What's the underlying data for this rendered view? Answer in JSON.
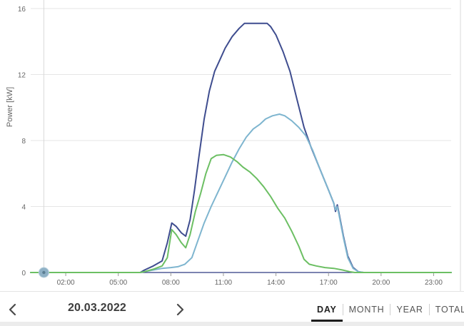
{
  "chart_data": {
    "type": "line",
    "title": "",
    "xlabel": "",
    "ylabel": "Power [kW]",
    "x_ticks": [
      "02:00",
      "05:00",
      "08:00",
      "11:00",
      "14:00",
      "17:00",
      "20:00",
      "23:00"
    ],
    "x_tick_hours": [
      2,
      5,
      8,
      11,
      14,
      17,
      20,
      23
    ],
    "xlim": [
      0,
      24
    ],
    "y_ticks": [
      0,
      4,
      8,
      12,
      16
    ],
    "ylim": [
      0,
      16
    ],
    "grid": "horizontal",
    "current_time_marker_hour": 0.75,
    "series": [
      {
        "color": "#3f4d8f",
        "points": [
          [
            0,
            0
          ],
          [
            6.25,
            0
          ],
          [
            6.5,
            0.15
          ],
          [
            7,
            0.4
          ],
          [
            7.5,
            0.7
          ],
          [
            7.8,
            1.8
          ],
          [
            8.05,
            3.0
          ],
          [
            8.3,
            2.8
          ],
          [
            8.6,
            2.4
          ],
          [
            8.85,
            2.2
          ],
          [
            9.1,
            3.2
          ],
          [
            9.35,
            5.0
          ],
          [
            9.6,
            7.0
          ],
          [
            9.9,
            9.3
          ],
          [
            10.2,
            11.0
          ],
          [
            10.5,
            12.2
          ],
          [
            10.8,
            12.9
          ],
          [
            11.1,
            13.6
          ],
          [
            11.5,
            14.3
          ],
          [
            11.9,
            14.8
          ],
          [
            12.2,
            15.1
          ],
          [
            13.5,
            15.1
          ],
          [
            13.7,
            14.9
          ],
          [
            14.0,
            14.4
          ],
          [
            14.4,
            13.4
          ],
          [
            14.8,
            12.2
          ],
          [
            15.2,
            10.5
          ],
          [
            15.6,
            8.8
          ],
          [
            16.0,
            7.6
          ],
          [
            16.5,
            6.3
          ],
          [
            17.0,
            5.0
          ],
          [
            17.3,
            4.2
          ],
          [
            17.4,
            3.7
          ],
          [
            17.5,
            4.1
          ],
          [
            17.6,
            3.6
          ],
          [
            17.85,
            2.2
          ],
          [
            18.1,
            1.0
          ],
          [
            18.4,
            0.3
          ],
          [
            18.7,
            0.05
          ],
          [
            19.0,
            0
          ],
          [
            24,
            0
          ]
        ]
      },
      {
        "color": "#7eb5cf",
        "points": [
          [
            0,
            0
          ],
          [
            6.25,
            0
          ],
          [
            6.5,
            0.05
          ],
          [
            7,
            0.15
          ],
          [
            7.5,
            0.25
          ],
          [
            8,
            0.3
          ],
          [
            8.4,
            0.35
          ],
          [
            8.8,
            0.5
          ],
          [
            9.2,
            0.9
          ],
          [
            9.5,
            1.8
          ],
          [
            9.9,
            3.0
          ],
          [
            10.3,
            4.0
          ],
          [
            10.7,
            4.9
          ],
          [
            11.1,
            5.8
          ],
          [
            11.5,
            6.7
          ],
          [
            11.9,
            7.5
          ],
          [
            12.3,
            8.2
          ],
          [
            12.7,
            8.7
          ],
          [
            13.1,
            9.0
          ],
          [
            13.4,
            9.3
          ],
          [
            13.8,
            9.5
          ],
          [
            14.2,
            9.6
          ],
          [
            14.5,
            9.5
          ],
          [
            14.9,
            9.2
          ],
          [
            15.3,
            8.8
          ],
          [
            15.7,
            8.3
          ],
          [
            16.1,
            7.4
          ],
          [
            16.5,
            6.3
          ],
          [
            17.0,
            5.0
          ],
          [
            17.3,
            4.2
          ],
          [
            17.4,
            3.8
          ],
          [
            17.5,
            4.0
          ],
          [
            17.6,
            3.5
          ],
          [
            17.85,
            2.1
          ],
          [
            18.1,
            0.9
          ],
          [
            18.4,
            0.25
          ],
          [
            18.7,
            0.05
          ],
          [
            19.0,
            0
          ],
          [
            24,
            0
          ]
        ]
      },
      {
        "color": "#6cbf63",
        "points": [
          [
            0,
            0
          ],
          [
            6.25,
            0
          ],
          [
            6.5,
            0.05
          ],
          [
            7,
            0.2
          ],
          [
            7.5,
            0.4
          ],
          [
            7.8,
            0.9
          ],
          [
            8.05,
            2.6
          ],
          [
            8.3,
            2.3
          ],
          [
            8.6,
            1.8
          ],
          [
            8.85,
            1.5
          ],
          [
            9.1,
            2.3
          ],
          [
            9.4,
            3.7
          ],
          [
            9.7,
            4.8
          ],
          [
            10.0,
            6.0
          ],
          [
            10.3,
            6.9
          ],
          [
            10.6,
            7.1
          ],
          [
            11.0,
            7.15
          ],
          [
            11.4,
            7.0
          ],
          [
            11.8,
            6.7
          ],
          [
            12.1,
            6.4
          ],
          [
            12.5,
            6.1
          ],
          [
            12.9,
            5.7
          ],
          [
            13.3,
            5.2
          ],
          [
            13.7,
            4.6
          ],
          [
            14.1,
            3.9
          ],
          [
            14.5,
            3.3
          ],
          [
            14.9,
            2.5
          ],
          [
            15.3,
            1.6
          ],
          [
            15.6,
            0.8
          ],
          [
            15.9,
            0.5
          ],
          [
            16.3,
            0.4
          ],
          [
            16.8,
            0.3
          ],
          [
            17.3,
            0.25
          ],
          [
            17.8,
            0.15
          ],
          [
            18.2,
            0.05
          ],
          [
            18.5,
            0
          ],
          [
            24,
            0
          ]
        ]
      }
    ]
  },
  "footer": {
    "date": "20.03.2022",
    "prev_icon": "chevron-left-icon",
    "next_icon": "chevron-right-icon",
    "tabs": [
      {
        "label": "DAY",
        "active": true
      },
      {
        "label": "MONTH",
        "active": false
      },
      {
        "label": "YEAR",
        "active": false
      },
      {
        "label": "TOTAL",
        "active": false
      }
    ]
  }
}
